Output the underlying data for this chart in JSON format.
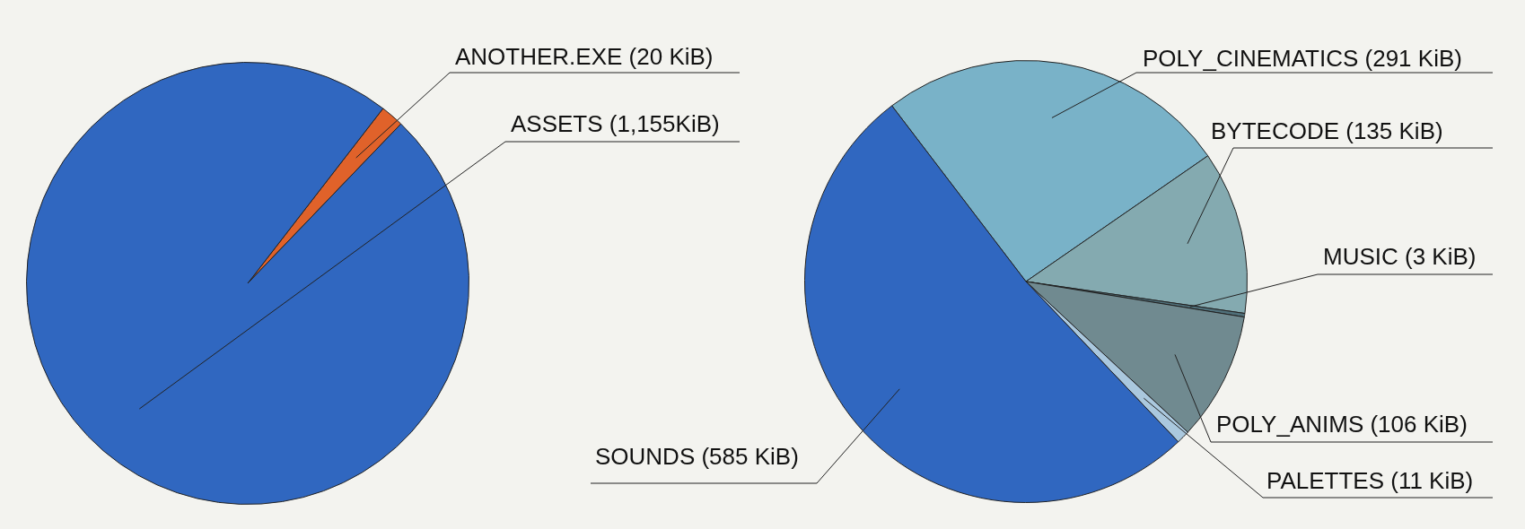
{
  "chart_data": [
    {
      "type": "pie",
      "categories": [
        "ANOTHER.EXE (20 KiB)",
        "ASSETS (1,155KiB)"
      ],
      "values": [
        20,
        1155
      ],
      "colors": [
        "#e0622a",
        "#3067c0"
      ]
    },
    {
      "type": "pie",
      "categories": [
        "POLY_CINEMATICS (291 KiB)",
        "BYTECODE (135 KiB)",
        "MUSIC (3 KiB)",
        "POLY_ANIMS (106 KiB)",
        "PALETTES (11 KiB)",
        "SOUNDS (585 KiB)"
      ],
      "values": [
        291,
        135,
        3,
        106,
        11,
        585
      ],
      "colors": [
        "#79b2c8",
        "#84aab0",
        "#50707a",
        "#708a90",
        "#aac8de",
        "#3067c0"
      ]
    }
  ]
}
